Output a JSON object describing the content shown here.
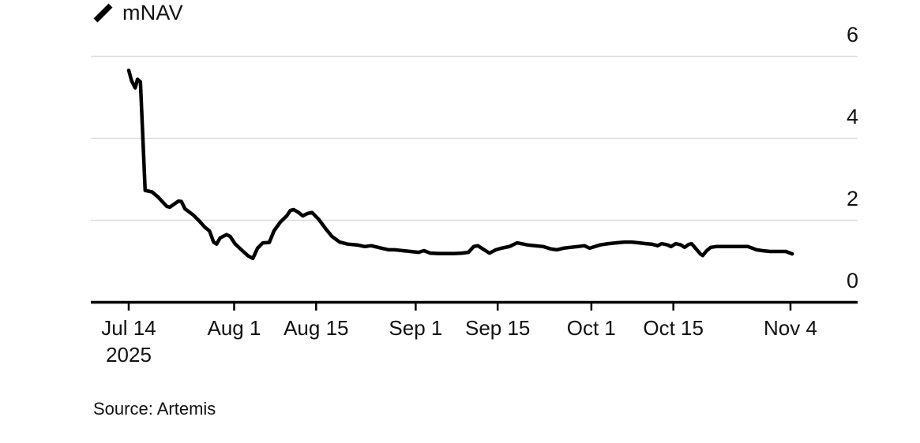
{
  "legend": {
    "label": "mNAV",
    "icon": "line-slash"
  },
  "source": {
    "text": "Source: Artemis"
  },
  "colors": {
    "line": "#000000",
    "grid": "#dcdcdc",
    "axis": "#000000",
    "text": "#111111",
    "background": "#ffffff"
  },
  "chart_data": {
    "type": "line",
    "title": "",
    "xlabel": "",
    "ylabel": "",
    "legend_position": "top-left",
    "grid": "horizontal",
    "y_axis_side": "right",
    "ylim": [
      0,
      6
    ],
    "y_ticks": [
      {
        "value": 0,
        "label": "0"
      },
      {
        "value": 2,
        "label": "2"
      },
      {
        "value": 4,
        "label": "4"
      },
      {
        "value": 6,
        "label": "6"
      }
    ],
    "x_unit": "days since 2025-07-14",
    "xlim_days": [
      0,
      113.5
    ],
    "x_ticks": [
      {
        "day": 0,
        "label": "Jul 14",
        "sublabel": "2025"
      },
      {
        "day": 18,
        "label": "Aug 1"
      },
      {
        "day": 32,
        "label": "Aug 15"
      },
      {
        "day": 49,
        "label": "Sep 1"
      },
      {
        "day": 63,
        "label": "Sep 15"
      },
      {
        "day": 79,
        "label": "Oct 1"
      },
      {
        "day": 93,
        "label": "Oct 15"
      },
      {
        "day": 113,
        "label": "Nov 4"
      }
    ],
    "series": [
      {
        "name": "mNAV",
        "color": "#000000",
        "points": [
          [
            0,
            5.66
          ],
          [
            0.5,
            5.4
          ],
          [
            1.1,
            5.23
          ],
          [
            1.5,
            5.44
          ],
          [
            2.0,
            5.38
          ],
          [
            2.8,
            2.73
          ],
          [
            4.0,
            2.69
          ],
          [
            5.0,
            2.57
          ],
          [
            6.5,
            2.34
          ],
          [
            7.0,
            2.32
          ],
          [
            8.5,
            2.47
          ],
          [
            9.0,
            2.46
          ],
          [
            9.6,
            2.28
          ],
          [
            11.0,
            2.13
          ],
          [
            12.0,
            1.99
          ],
          [
            13.0,
            1.83
          ],
          [
            13.8,
            1.74
          ],
          [
            14.5,
            1.47
          ],
          [
            15.0,
            1.42
          ],
          [
            15.6,
            1.57
          ],
          [
            16.7,
            1.65
          ],
          [
            17.3,
            1.61
          ],
          [
            18.2,
            1.42
          ],
          [
            19.4,
            1.26
          ],
          [
            20.4,
            1.13
          ],
          [
            21.2,
            1.07
          ],
          [
            22.0,
            1.32
          ],
          [
            22.9,
            1.45
          ],
          [
            24.0,
            1.46
          ],
          [
            24.8,
            1.74
          ],
          [
            25.9,
            1.96
          ],
          [
            27.0,
            2.11
          ],
          [
            27.6,
            2.24
          ],
          [
            28.2,
            2.26
          ],
          [
            29.0,
            2.19
          ],
          [
            29.7,
            2.11
          ],
          [
            30.6,
            2.17
          ],
          [
            31.3,
            2.19
          ],
          [
            32.4,
            2.03
          ],
          [
            33.6,
            1.8
          ],
          [
            34.7,
            1.61
          ],
          [
            36.0,
            1.47
          ],
          [
            37.4,
            1.42
          ],
          [
            39.0,
            1.4
          ],
          [
            40.3,
            1.36
          ],
          [
            41.4,
            1.38
          ],
          [
            43.2,
            1.32
          ],
          [
            44.4,
            1.28
          ],
          [
            45.4,
            1.28
          ],
          [
            46.8,
            1.26
          ],
          [
            48.1,
            1.24
          ],
          [
            49.5,
            1.22
          ],
          [
            50.4,
            1.26
          ],
          [
            51.5,
            1.2
          ],
          [
            52.9,
            1.19
          ],
          [
            54.2,
            1.19
          ],
          [
            55.6,
            1.19
          ],
          [
            56.9,
            1.2
          ],
          [
            58.0,
            1.22
          ],
          [
            58.9,
            1.36
          ],
          [
            59.6,
            1.38
          ],
          [
            60.7,
            1.28
          ],
          [
            61.6,
            1.2
          ],
          [
            62.7,
            1.28
          ],
          [
            63.6,
            1.32
          ],
          [
            65.0,
            1.36
          ],
          [
            66.3,
            1.45
          ],
          [
            68.1,
            1.4
          ],
          [
            69.4,
            1.38
          ],
          [
            70.8,
            1.36
          ],
          [
            72.1,
            1.3
          ],
          [
            73.1,
            1.28
          ],
          [
            74.2,
            1.32
          ],
          [
            75.4,
            1.34
          ],
          [
            76.7,
            1.36
          ],
          [
            77.8,
            1.38
          ],
          [
            78.7,
            1.32
          ],
          [
            80.5,
            1.4
          ],
          [
            81.9,
            1.43
          ],
          [
            83.2,
            1.45
          ],
          [
            84.6,
            1.47
          ],
          [
            85.9,
            1.47
          ],
          [
            87.2,
            1.45
          ],
          [
            88.3,
            1.43
          ],
          [
            89.3,
            1.42
          ],
          [
            90.3,
            1.38
          ],
          [
            91.0,
            1.43
          ],
          [
            92.0,
            1.4
          ],
          [
            92.6,
            1.36
          ],
          [
            93.4,
            1.43
          ],
          [
            94.3,
            1.4
          ],
          [
            94.9,
            1.34
          ],
          [
            95.6,
            1.41
          ],
          [
            96.1,
            1.43
          ],
          [
            97.6,
            1.18
          ],
          [
            98.0,
            1.14
          ],
          [
            98.7,
            1.26
          ],
          [
            99.4,
            1.34
          ],
          [
            100.3,
            1.36
          ],
          [
            102.0,
            1.36
          ],
          [
            104.0,
            1.36
          ],
          [
            105.7,
            1.36
          ],
          [
            106.5,
            1.32
          ],
          [
            107.2,
            1.28
          ],
          [
            108.2,
            1.26
          ],
          [
            109.5,
            1.24
          ],
          [
            111.0,
            1.24
          ],
          [
            112.2,
            1.24
          ],
          [
            113.3,
            1.18
          ]
        ]
      }
    ]
  }
}
